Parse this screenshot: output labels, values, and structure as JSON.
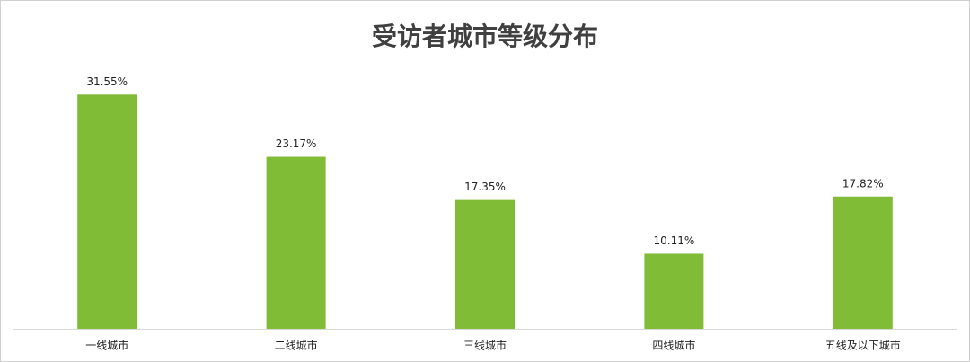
{
  "chart_data": {
    "type": "bar",
    "title": "受访者城市等级分布",
    "categories": [
      "一线城市",
      "二线城市",
      "三线城市",
      "四线城市",
      "五线及以下城市"
    ],
    "values": [
      31.55,
      23.17,
      17.35,
      10.11,
      17.82
    ],
    "value_labels": [
      "31.55%",
      "23.17%",
      "17.35%",
      "10.11%",
      "17.82%"
    ],
    "color": "#80bc35",
    "ylim": [
      0,
      38
    ]
  }
}
